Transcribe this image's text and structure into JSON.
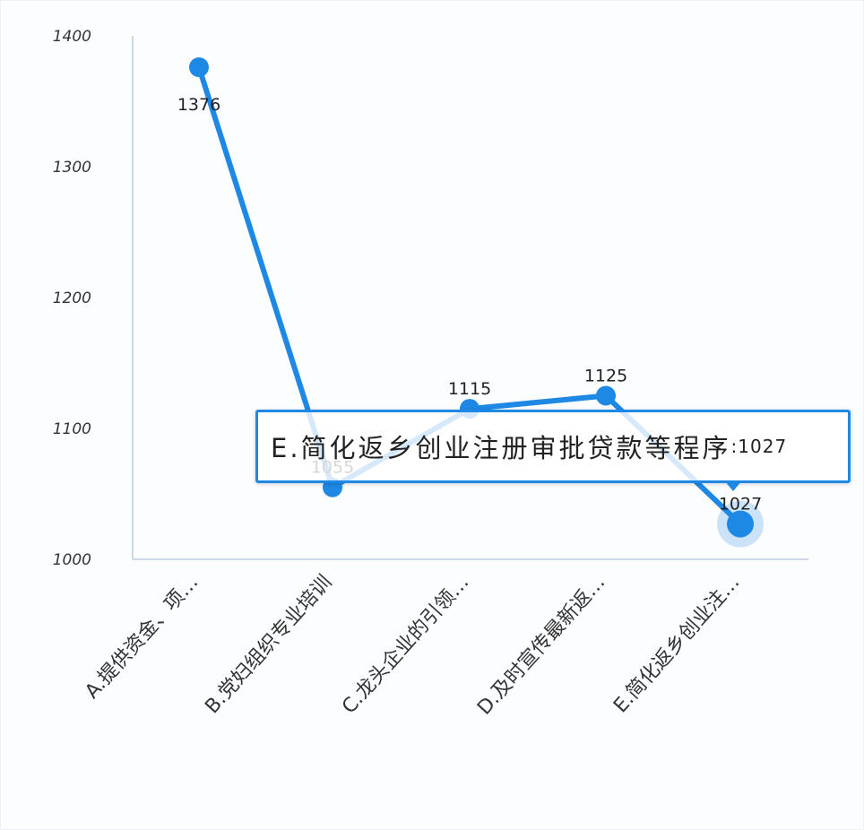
{
  "chart_data": {
    "type": "line",
    "categories": [
      "A.提供资金、项…",
      "B.党妇组织专业培训",
      "C.龙头企业的引领…",
      "D.及时宣传最新返…",
      "E.简化返乡创业注…"
    ],
    "values": [
      1376,
      1055,
      1115,
      1125,
      1027
    ],
    "data_labels": [
      "1376",
      "1055",
      "1115",
      "1125",
      "1027"
    ],
    "ylim": [
      1000,
      1400
    ],
    "yticks": [
      1000,
      1100,
      1200,
      1300,
      1400
    ],
    "ytick_labels": [
      "1000",
      "1100",
      "1200",
      "1300",
      "1400"
    ],
    "grid": false,
    "series_color": "#1e88e5",
    "highlighted_index": 4
  },
  "tooltip": {
    "label": "E.简化返乡创业注册审批贷款等程序",
    "value": ":1027"
  }
}
